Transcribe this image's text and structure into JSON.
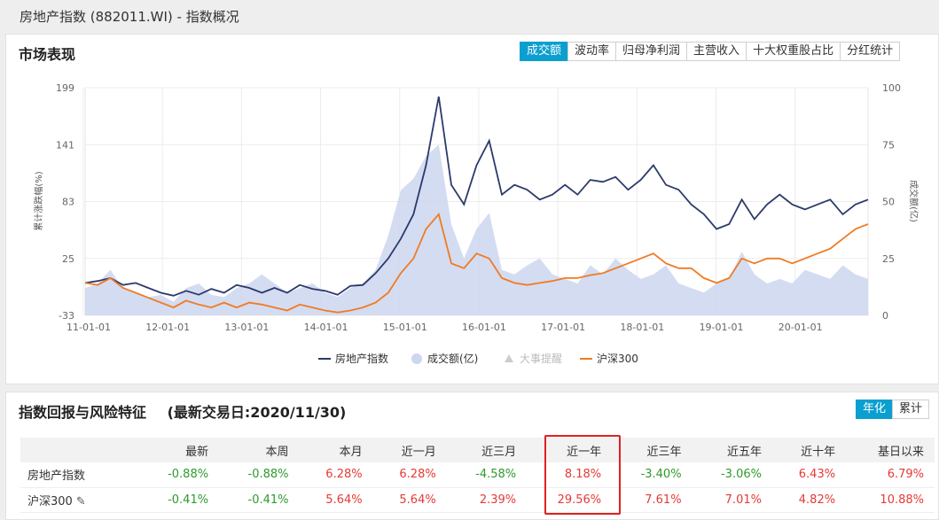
{
  "window": {
    "title": "房地产指数 (882011.WI) - 指数概况"
  },
  "market": {
    "title": "市场表现",
    "tabs": [
      {
        "label": "成交额",
        "active": true
      },
      {
        "label": "波动率",
        "active": false
      },
      {
        "label": "归母净利润",
        "active": false
      },
      {
        "label": "主营收入",
        "active": false
      },
      {
        "label": "十大权重股占比",
        "active": false
      },
      {
        "label": "分红统计",
        "active": false
      }
    ]
  },
  "chart_data": {
    "type": "line",
    "x_ticks": [
      "11-01-01",
      "12-01-01",
      "13-01-01",
      "14-01-01",
      "15-01-01",
      "16-01-01",
      "17-01-01",
      "18-01-01",
      "19-01-01",
      "20-01-01"
    ],
    "x": [
      "2010-11",
      "2011-01",
      "2011-03",
      "2011-05",
      "2011-07",
      "2011-09",
      "2011-11",
      "2012-01",
      "2012-03",
      "2012-05",
      "2012-07",
      "2012-09",
      "2012-11",
      "2013-01",
      "2013-03",
      "2013-05",
      "2013-07",
      "2013-09",
      "2013-11",
      "2014-01",
      "2014-03",
      "2014-05",
      "2014-07",
      "2014-09",
      "2014-11",
      "2015-01",
      "2015-03",
      "2015-05",
      "2015-06",
      "2015-07",
      "2015-09",
      "2015-11",
      "2015-12",
      "2016-01",
      "2016-03",
      "2016-05",
      "2016-07",
      "2016-09",
      "2016-11",
      "2017-01",
      "2017-03",
      "2017-05",
      "2017-07",
      "2017-09",
      "2017-11",
      "2018-01",
      "2018-03",
      "2018-05",
      "2018-07",
      "2018-09",
      "2018-11",
      "2019-01",
      "2019-03",
      "2019-05",
      "2019-07",
      "2019-09",
      "2019-11",
      "2020-01",
      "2020-03",
      "2020-05",
      "2020-07",
      "2020-09",
      "2020-11"
    ],
    "y_left_ticks": [
      "199",
      "141",
      "83",
      "25",
      "-33"
    ],
    "y_right_ticks": [
      "100",
      "75",
      "50",
      "25",
      "0"
    ],
    "ylim_left": [
      -33,
      199
    ],
    "ylim_right": [
      0,
      100
    ],
    "ylabel_left": "累计涨跌幅(%)",
    "ylabel_right": "成交额(亿)",
    "series": [
      {
        "name": "房地产指数",
        "color": "#2b3a6b",
        "axis": "left",
        "values": [
          0,
          2,
          5,
          -2,
          0,
          -5,
          -10,
          -13,
          -8,
          -12,
          -6,
          -10,
          -2,
          -5,
          -10,
          -5,
          -10,
          -2,
          -6,
          -8,
          -12,
          -3,
          -2,
          10,
          25,
          45,
          70,
          120,
          190,
          100,
          80,
          120,
          145,
          90,
          100,
          95,
          85,
          90,
          100,
          90,
          105,
          103,
          108,
          95,
          105,
          120,
          100,
          95,
          80,
          70,
          55,
          60,
          85,
          65,
          80,
          90,
          80,
          75,
          80,
          85,
          70,
          80,
          85
        ]
      },
      {
        "name": "沪深300",
        "color": "#f07b22",
        "axis": "left",
        "values": [
          0,
          -2,
          5,
          -5,
          -10,
          -15,
          -20,
          -25,
          -18,
          -22,
          -25,
          -20,
          -25,
          -20,
          -22,
          -25,
          -28,
          -22,
          -25,
          -28,
          -30,
          -28,
          -25,
          -20,
          -10,
          10,
          25,
          55,
          70,
          20,
          15,
          30,
          25,
          5,
          0,
          -2,
          0,
          2,
          5,
          5,
          8,
          10,
          15,
          20,
          25,
          30,
          20,
          15,
          15,
          5,
          0,
          5,
          25,
          20,
          25,
          25,
          20,
          25,
          30,
          35,
          45,
          55,
          60
        ]
      },
      {
        "name": "成交额(亿)",
        "color": "#cdd6f0",
        "axis": "right",
        "kind": "area",
        "values": [
          12,
          14,
          20,
          12,
          10,
          8,
          9,
          6,
          12,
          14,
          9,
          8,
          12,
          14,
          18,
          14,
          10,
          12,
          14,
          10,
          8,
          12,
          14,
          20,
          35,
          55,
          60,
          70,
          75,
          40,
          25,
          38,
          45,
          20,
          18,
          22,
          25,
          18,
          16,
          14,
          22,
          18,
          25,
          20,
          16,
          18,
          22,
          14,
          12,
          10,
          14,
          16,
          28,
          18,
          14,
          16,
          14,
          20,
          18,
          16,
          22,
          18,
          16
        ]
      }
    ],
    "legend": [
      {
        "label": "房地产指数",
        "kind": "line",
        "color": "#2b3a6b"
      },
      {
        "label": "成交额(亿)",
        "kind": "dot",
        "color": "#cdd6f0"
      },
      {
        "label": "大事提醒",
        "kind": "triangle",
        "color": "#cccccc",
        "disabled": true
      },
      {
        "label": "沪深300",
        "kind": "line",
        "color": "#f07b22"
      }
    ],
    "legend_position": "bottom-center",
    "grid": true
  },
  "returns": {
    "title": "指数回报与风险特征",
    "latest_date": "(最新交易日:2020/11/30)",
    "mode_buttons": [
      {
        "label": "年化",
        "active": true
      },
      {
        "label": "累计",
        "active": false
      }
    ],
    "columns": [
      "",
      "最新",
      "本周",
      "本月",
      "近一月",
      "近三月",
      "近一年",
      "近三年",
      "近五年",
      "近十年",
      "基日以来"
    ],
    "rows": [
      {
        "name": "房地产指数",
        "values": [
          "-0.88%",
          "-0.88%",
          "6.28%",
          "6.28%",
          "-4.58%",
          "8.18%",
          "-3.40%",
          "-3.06%",
          "6.43%",
          "6.79%"
        ]
      },
      {
        "name": "沪深300",
        "values": [
          "-0.41%",
          "-0.41%",
          "5.64%",
          "5.64%",
          "2.39%",
          "29.56%",
          "7.61%",
          "7.01%",
          "4.82%",
          "10.88%"
        ]
      }
    ]
  }
}
